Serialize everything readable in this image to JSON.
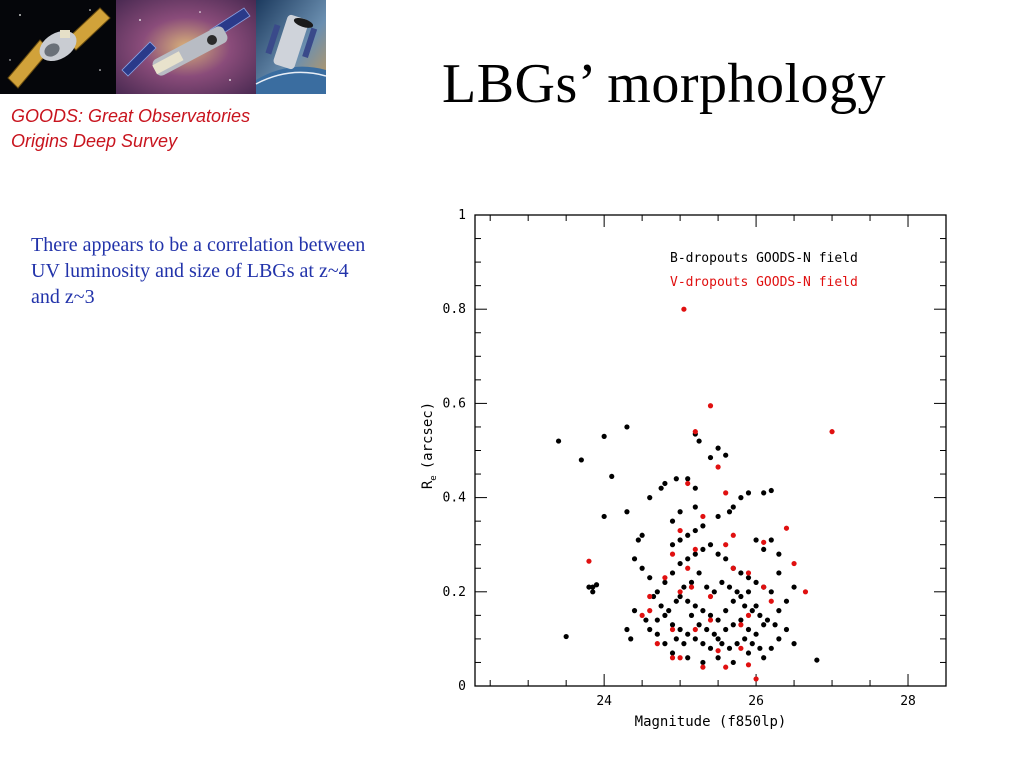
{
  "header": {
    "title": "LBGs’ morphology",
    "goods_line1": "GOODS: Great Observatories",
    "goods_line2": "Origins Deep Survey"
  },
  "body": {
    "text": "There appears to be a correlation between UV luminosity and size of LBGs at z~4 and z~3"
  },
  "banner": {
    "icons": [
      "chandra-satellite-image",
      "spitzer-satellite-image",
      "hubble-telescope-image"
    ]
  },
  "colors": {
    "title_text": "#000000",
    "goods_text": "#c8141e",
    "body_text": "#2233aa",
    "series_b": "#000000",
    "series_v": "#e01010"
  },
  "chart_data": {
    "type": "scatter",
    "xlabel": "Magnitude (f850lp)",
    "ylabel_main": "R",
    "ylabel_sub": "e",
    "ylabel_unit": "(arcsec)",
    "xlim": [
      22.3,
      28.5
    ],
    "ylim": [
      0,
      1
    ],
    "xticks": [
      24,
      26,
      28
    ],
    "yticks": [
      0,
      0.2,
      0.4,
      0.6,
      0.8,
      1
    ],
    "ytick_labels": [
      "0",
      "0.2",
      "0.4",
      "0.6",
      "0.8",
      "1"
    ],
    "legend_position": "top-right",
    "series": [
      {
        "name": "B-dropouts GOODS-N field",
        "color": "#000000",
        "points": [
          [
            23.4,
            0.52
          ],
          [
            23.7,
            0.48
          ],
          [
            24.0,
            0.53
          ],
          [
            24.3,
            0.55
          ],
          [
            24.1,
            0.445
          ],
          [
            23.5,
            0.105
          ],
          [
            24.0,
            0.36
          ],
          [
            24.3,
            0.37
          ],
          [
            24.4,
            0.27
          ],
          [
            24.45,
            0.31
          ],
          [
            24.5,
            0.32
          ],
          [
            23.9,
            0.215
          ],
          [
            23.8,
            0.21
          ],
          [
            23.85,
            0.21
          ],
          [
            23.85,
            0.2
          ],
          [
            24.3,
            0.12
          ],
          [
            24.35,
            0.1
          ],
          [
            24.55,
            0.14
          ],
          [
            24.4,
            0.16
          ],
          [
            24.5,
            0.25
          ],
          [
            25.2,
            0.535
          ],
          [
            25.25,
            0.52
          ],
          [
            25.5,
            0.505
          ],
          [
            25.6,
            0.49
          ],
          [
            25.4,
            0.485
          ],
          [
            25.1,
            0.44
          ],
          [
            25.2,
            0.42
          ],
          [
            24.95,
            0.44
          ],
          [
            24.8,
            0.43
          ],
          [
            24.75,
            0.42
          ],
          [
            24.6,
            0.4
          ],
          [
            25.9,
            0.41
          ],
          [
            26.1,
            0.41
          ],
          [
            26.2,
            0.415
          ],
          [
            25.8,
            0.4
          ],
          [
            25.7,
            0.38
          ],
          [
            25.65,
            0.37
          ],
          [
            25.5,
            0.36
          ],
          [
            25.2,
            0.38
          ],
          [
            25.0,
            0.37
          ],
          [
            24.9,
            0.35
          ],
          [
            26.2,
            0.31
          ],
          [
            26.3,
            0.28
          ],
          [
            26.1,
            0.29
          ],
          [
            26.0,
            0.31
          ],
          [
            26.3,
            0.24
          ],
          [
            26.5,
            0.21
          ],
          [
            26.2,
            0.2
          ],
          [
            26.4,
            0.18
          ],
          [
            26.0,
            0.17
          ],
          [
            26.3,
            0.16
          ],
          [
            26.4,
            0.12
          ],
          [
            26.3,
            0.1
          ],
          [
            26.2,
            0.08
          ],
          [
            26.5,
            0.09
          ],
          [
            26.8,
            0.055
          ],
          [
            26.1,
            0.06
          ],
          [
            25.9,
            0.07
          ],
          [
            25.7,
            0.05
          ],
          [
            25.5,
            0.06
          ],
          [
            25.3,
            0.05
          ],
          [
            25.1,
            0.06
          ],
          [
            24.9,
            0.07
          ],
          [
            24.8,
            0.09
          ],
          [
            24.7,
            0.11
          ],
          [
            24.6,
            0.12
          ],
          [
            24.7,
            0.14
          ],
          [
            24.8,
            0.15
          ],
          [
            24.9,
            0.13
          ],
          [
            25.0,
            0.12
          ],
          [
            25.1,
            0.11
          ],
          [
            25.2,
            0.1
          ],
          [
            25.3,
            0.09
          ],
          [
            25.4,
            0.08
          ],
          [
            25.5,
            0.1
          ],
          [
            25.6,
            0.12
          ],
          [
            25.7,
            0.13
          ],
          [
            25.8,
            0.14
          ],
          [
            25.9,
            0.12
          ],
          [
            26.0,
            0.11
          ],
          [
            26.1,
            0.13
          ],
          [
            24.7,
            0.2
          ],
          [
            24.8,
            0.22
          ],
          [
            24.9,
            0.24
          ],
          [
            25.0,
            0.26
          ],
          [
            25.1,
            0.27
          ],
          [
            25.2,
            0.28
          ],
          [
            25.3,
            0.29
          ],
          [
            25.4,
            0.3
          ],
          [
            25.5,
            0.28
          ],
          [
            25.6,
            0.27
          ],
          [
            25.7,
            0.25
          ],
          [
            25.8,
            0.24
          ],
          [
            25.9,
            0.23
          ],
          [
            26.0,
            0.22
          ],
          [
            26.1,
            0.21
          ],
          [
            25.0,
            0.19
          ],
          [
            25.1,
            0.18
          ],
          [
            25.2,
            0.17
          ],
          [
            25.3,
            0.16
          ],
          [
            25.4,
            0.15
          ],
          [
            25.5,
            0.14
          ],
          [
            25.6,
            0.16
          ],
          [
            25.7,
            0.18
          ],
          [
            25.8,
            0.19
          ],
          [
            25.9,
            0.2
          ],
          [
            24.9,
            0.3
          ],
          [
            25.0,
            0.31
          ],
          [
            25.1,
            0.32
          ],
          [
            25.2,
            0.33
          ],
          [
            25.3,
            0.34
          ],
          [
            24.6,
            0.23
          ],
          [
            24.65,
            0.19
          ],
          [
            24.75,
            0.17
          ],
          [
            24.85,
            0.16
          ],
          [
            24.95,
            0.18
          ],
          [
            25.05,
            0.21
          ],
          [
            25.15,
            0.22
          ],
          [
            25.25,
            0.24
          ],
          [
            25.35,
            0.21
          ],
          [
            25.45,
            0.2
          ],
          [
            25.55,
            0.22
          ],
          [
            25.65,
            0.21
          ],
          [
            25.75,
            0.2
          ],
          [
            25.85,
            0.17
          ],
          [
            25.95,
            0.16
          ],
          [
            26.05,
            0.15
          ],
          [
            26.15,
            0.14
          ],
          [
            26.25,
            0.13
          ],
          [
            25.15,
            0.15
          ],
          [
            25.25,
            0.13
          ],
          [
            25.35,
            0.12
          ],
          [
            25.45,
            0.11
          ],
          [
            25.55,
            0.09
          ],
          [
            25.65,
            0.08
          ],
          [
            25.75,
            0.09
          ],
          [
            25.85,
            0.1
          ],
          [
            25.95,
            0.09
          ],
          [
            26.05,
            0.08
          ],
          [
            25.05,
            0.09
          ],
          [
            24.95,
            0.1
          ]
        ]
      },
      {
        "name": "V-dropouts GOODS-N field",
        "color": "#e01010",
        "points": [
          [
            25.05,
            0.8
          ],
          [
            25.4,
            0.595
          ],
          [
            25.2,
            0.54
          ],
          [
            27.0,
            0.54
          ],
          [
            25.5,
            0.465
          ],
          [
            25.1,
            0.43
          ],
          [
            23.8,
            0.265
          ],
          [
            26.5,
            0.26
          ],
          [
            26.65,
            0.2
          ],
          [
            26.4,
            0.335
          ],
          [
            26.1,
            0.305
          ],
          [
            25.7,
            0.32
          ],
          [
            25.6,
            0.3
          ],
          [
            25.3,
            0.36
          ],
          [
            25.6,
            0.41
          ],
          [
            25.0,
            0.33
          ],
          [
            24.9,
            0.28
          ],
          [
            25.2,
            0.29
          ],
          [
            25.1,
            0.25
          ],
          [
            24.8,
            0.23
          ],
          [
            25.0,
            0.2
          ],
          [
            25.4,
            0.19
          ],
          [
            25.7,
            0.25
          ],
          [
            25.9,
            0.24
          ],
          [
            26.1,
            0.21
          ],
          [
            26.2,
            0.18
          ],
          [
            25.9,
            0.15
          ],
          [
            25.8,
            0.13
          ],
          [
            25.4,
            0.14
          ],
          [
            25.2,
            0.12
          ],
          [
            24.9,
            0.12
          ],
          [
            24.6,
            0.16
          ],
          [
            24.5,
            0.15
          ],
          [
            24.7,
            0.09
          ],
          [
            25.0,
            0.06
          ],
          [
            25.3,
            0.04
          ],
          [
            25.6,
            0.04
          ],
          [
            25.9,
            0.045
          ],
          [
            26.0,
            0.015
          ],
          [
            25.5,
            0.075
          ],
          [
            25.8,
            0.08
          ],
          [
            24.9,
            0.06
          ],
          [
            25.15,
            0.21
          ],
          [
            24.6,
            0.19
          ]
        ]
      }
    ]
  }
}
